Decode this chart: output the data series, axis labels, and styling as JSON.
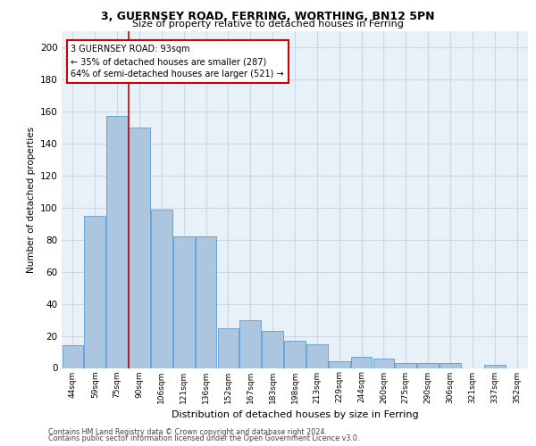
{
  "title_line1": "3, GUERNSEY ROAD, FERRING, WORTHING, BN12 5PN",
  "title_line2": "Size of property relative to detached houses in Ferring",
  "xlabel": "Distribution of detached houses by size in Ferring",
  "ylabel": "Number of detached properties",
  "categories": [
    "44sqm",
    "59sqm",
    "75sqm",
    "90sqm",
    "106sqm",
    "121sqm",
    "136sqm",
    "152sqm",
    "167sqm",
    "183sqm",
    "198sqm",
    "213sqm",
    "229sqm",
    "244sqm",
    "260sqm",
    "275sqm",
    "290sqm",
    "306sqm",
    "321sqm",
    "337sqm",
    "352sqm"
  ],
  "values": [
    14,
    95,
    157,
    150,
    99,
    82,
    82,
    25,
    30,
    23,
    17,
    15,
    4,
    7,
    6,
    3,
    3,
    3,
    0,
    2,
    0
  ],
  "bar_color": "#adc6e0",
  "bar_edge_color": "#5b9bd5",
  "annotation_text": "3 GUERNSEY ROAD: 93sqm\n← 35% of detached houses are smaller (287)\n64% of semi-detached houses are larger (521) →",
  "annotation_box_color": "#ffffff",
  "annotation_box_edge": "#cc0000",
  "annotation_text_color": "#000000",
  "vline_color": "#cc0000",
  "ylim": [
    0,
    210
  ],
  "yticks": [
    0,
    20,
    40,
    60,
    80,
    100,
    120,
    140,
    160,
    180,
    200
  ],
  "grid_color": "#c8d8e8",
  "bg_color": "#e8f0f8",
  "footer_line1": "Contains HM Land Registry data © Crown copyright and database right 2024.",
  "footer_line2": "Contains public sector information licensed under the Open Government Licence v3.0."
}
